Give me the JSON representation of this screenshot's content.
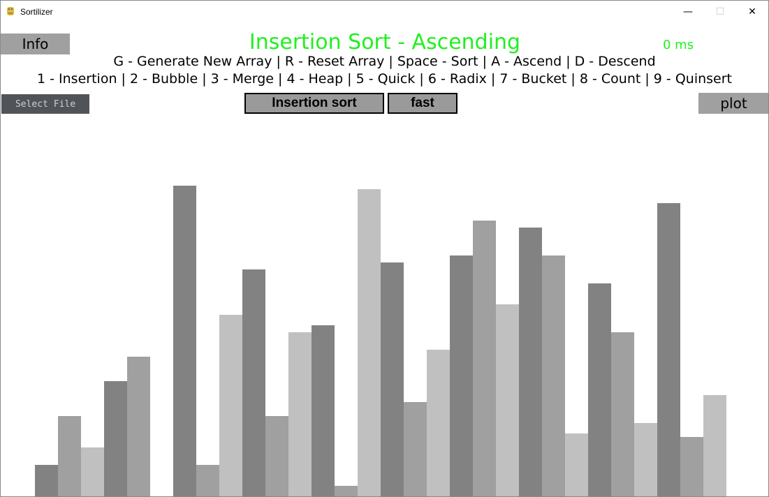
{
  "window": {
    "title": "Sortilizer",
    "minimize_glyph": "—",
    "maximize_glyph": "☐",
    "close_glyph": "✕"
  },
  "toolbar": {
    "info_label": "Info",
    "heading": "Insertion Sort - Ascending",
    "timer": "0 ms",
    "help_line_1": "G - Generate New Array | R - Reset Array | Space - Sort | A - Ascend | D - Descend",
    "help_line_2": "1 - Insertion | 2 - Bubble | 3 - Merge | 4 - Heap | 5 - Quick | 6 - Radix | 7 - Bucket | 8 - Count | 9 - Quinsert",
    "select_file_label": "Select File",
    "algorithm_label": "Insertion sort",
    "speed_label": "fast",
    "plot_label": "plot"
  },
  "colors": {
    "accent": "#1ff01f",
    "bar_shades": [
      "#828282",
      "#a0a0a0",
      "#c0c0c0"
    ],
    "button_gray": "#a0a0a0",
    "file_button": "#505458"
  },
  "chart_data": {
    "type": "bar",
    "values": [
      45,
      115,
      70,
      165,
      200,
      0,
      445,
      45,
      260,
      325,
      115,
      235,
      245,
      15,
      440,
      335,
      135,
      210,
      345,
      395,
      275,
      385,
      345,
      90,
      305,
      235,
      105,
      420,
      85,
      145
    ],
    "ylim": [
      0,
      480
    ]
  }
}
